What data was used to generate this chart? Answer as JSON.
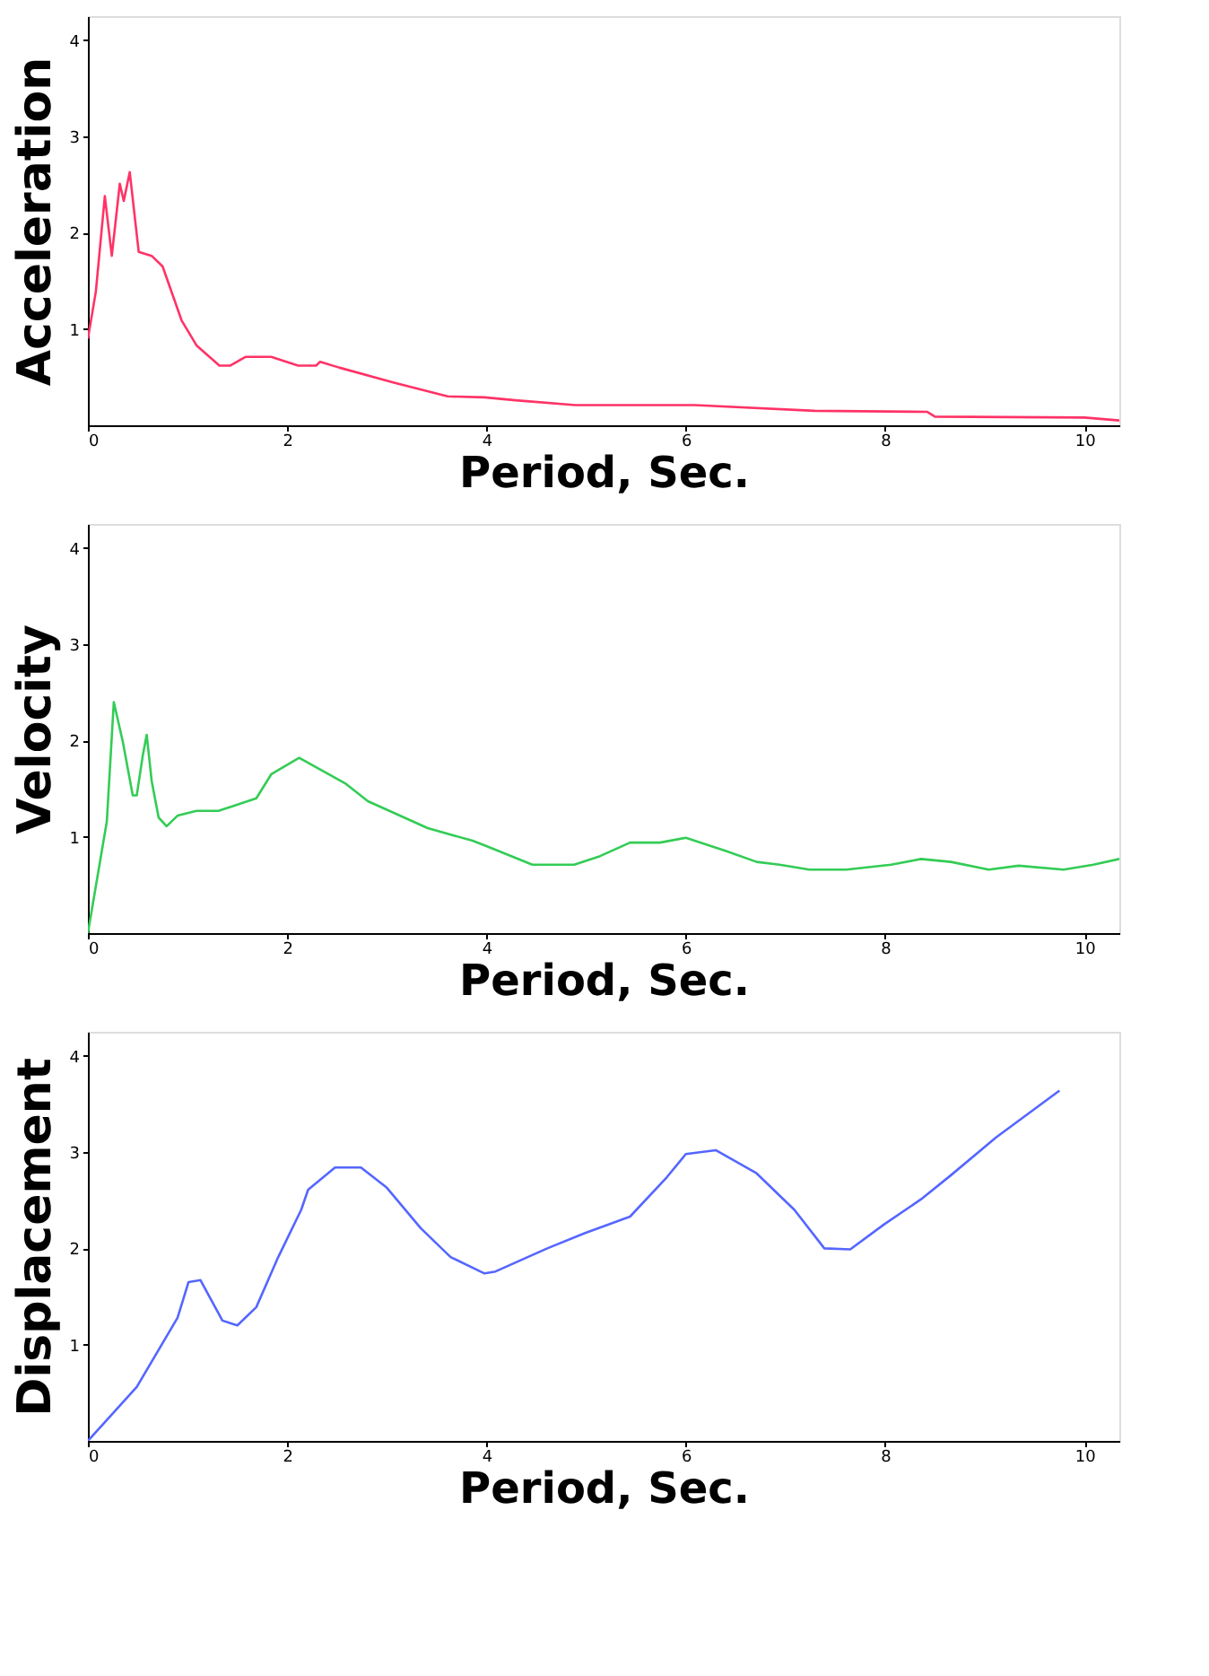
{
  "chart_data": [
    {
      "type": "line",
      "xlabel": "Period, Sec.",
      "ylabel": "Acceleration",
      "xlim": [
        0,
        10.35
      ],
      "ylim": [
        0,
        4.25
      ],
      "xticks": [
        0,
        2,
        4,
        6,
        8,
        10
      ],
      "yticks": [
        1,
        2,
        3,
        4
      ],
      "grid": false,
      "x": [
        0,
        0.08,
        0.17,
        0.24,
        0.32,
        0.36,
        0.42,
        0.51,
        0.64,
        0.75,
        0.94,
        1.09,
        1.32,
        1.43,
        1.58,
        1.84,
        2.11,
        2.29,
        2.33,
        2.52,
        3.08,
        3.61,
        3.98,
        4.29,
        4.89,
        6.09,
        7.29,
        8.42,
        8.5,
        10.0,
        10.35
      ],
      "series": [
        {
          "color": "#ff3366",
          "values": [
            0.9,
            1.39,
            2.38,
            1.76,
            2.51,
            2.33,
            2.63,
            1.8,
            1.76,
            1.65,
            1.09,
            0.83,
            0.62,
            0.62,
            0.71,
            0.71,
            0.62,
            0.62,
            0.66,
            0.6,
            0.44,
            0.3,
            0.29,
            0.26,
            0.21,
            0.21,
            0.15,
            0.14,
            0.09,
            0.08,
            0.05
          ]
        }
      ]
    },
    {
      "type": "line",
      "xlabel": "Period, Sec.",
      "ylabel": "Velocity",
      "xlim": [
        0,
        10.35
      ],
      "ylim": [
        0,
        4.25
      ],
      "xticks": [
        0,
        2,
        4,
        6,
        8,
        10
      ],
      "yticks": [
        1,
        2,
        3,
        4
      ],
      "grid": false,
      "x": [
        0,
        0.19,
        0.26,
        0.35,
        0.45,
        0.49,
        0.55,
        0.59,
        0.64,
        0.71,
        0.79,
        0.9,
        1.09,
        1.31,
        1.69,
        1.84,
        2.12,
        2.59,
        2.81,
        3.41,
        3.86,
        4.01,
        4.46,
        4.88,
        5.14,
        5.44,
        5.74,
        6.0,
        6.41,
        6.71,
        6.94,
        7.24,
        7.61,
        8.06,
        8.36,
        8.66,
        9.04,
        9.34,
        9.79,
        10.09,
        10.35
      ],
      "series": [
        {
          "color": "#33cc55",
          "values": [
            0,
            1.16,
            2.4,
            1.99,
            1.43,
            1.43,
            1.84,
            2.06,
            1.58,
            1.2,
            1.11,
            1.22,
            1.27,
            1.27,
            1.4,
            1.65,
            1.82,
            1.55,
            1.37,
            1.09,
            0.96,
            0.9,
            0.71,
            0.71,
            0.8,
            0.94,
            0.94,
            0.99,
            0.85,
            0.74,
            0.71,
            0.66,
            0.66,
            0.71,
            0.77,
            0.74,
            0.66,
            0.7,
            0.66,
            0.71,
            0.77
          ]
        }
      ]
    },
    {
      "type": "line",
      "xlabel": "Period, Sec.",
      "ylabel": "Displacement",
      "xlim": [
        0,
        10.35
      ],
      "ylim": [
        0,
        4.25
      ],
      "xticks": [
        0,
        2,
        4,
        6,
        8,
        10
      ],
      "yticks": [
        1,
        2,
        3,
        4
      ],
      "grid": false,
      "x": [
        0,
        0.49,
        0.9,
        1.01,
        1.13,
        1.35,
        1.5,
        1.69,
        1.91,
        2.14,
        2.21,
        2.48,
        2.74,
        3.0,
        3.34,
        3.64,
        3.98,
        4.09,
        4.61,
        4.99,
        5.44,
        5.81,
        6.0,
        6.3,
        6.71,
        7.09,
        7.39,
        7.65,
        7.99,
        8.36,
        8.66,
        9.11,
        9.75
      ],
      "series": [
        {
          "color": "#5566ff",
          "values": [
            0,
            0.56,
            1.28,
            1.65,
            1.67,
            1.25,
            1.2,
            1.39,
            1.91,
            2.4,
            2.61,
            2.84,
            2.84,
            2.63,
            2.21,
            1.91,
            1.74,
            1.76,
            2.0,
            2.16,
            2.33,
            2.74,
            2.98,
            3.02,
            2.78,
            2.4,
            2.0,
            1.99,
            2.25,
            2.51,
            2.76,
            3.15,
            3.64
          ]
        }
      ]
    }
  ]
}
